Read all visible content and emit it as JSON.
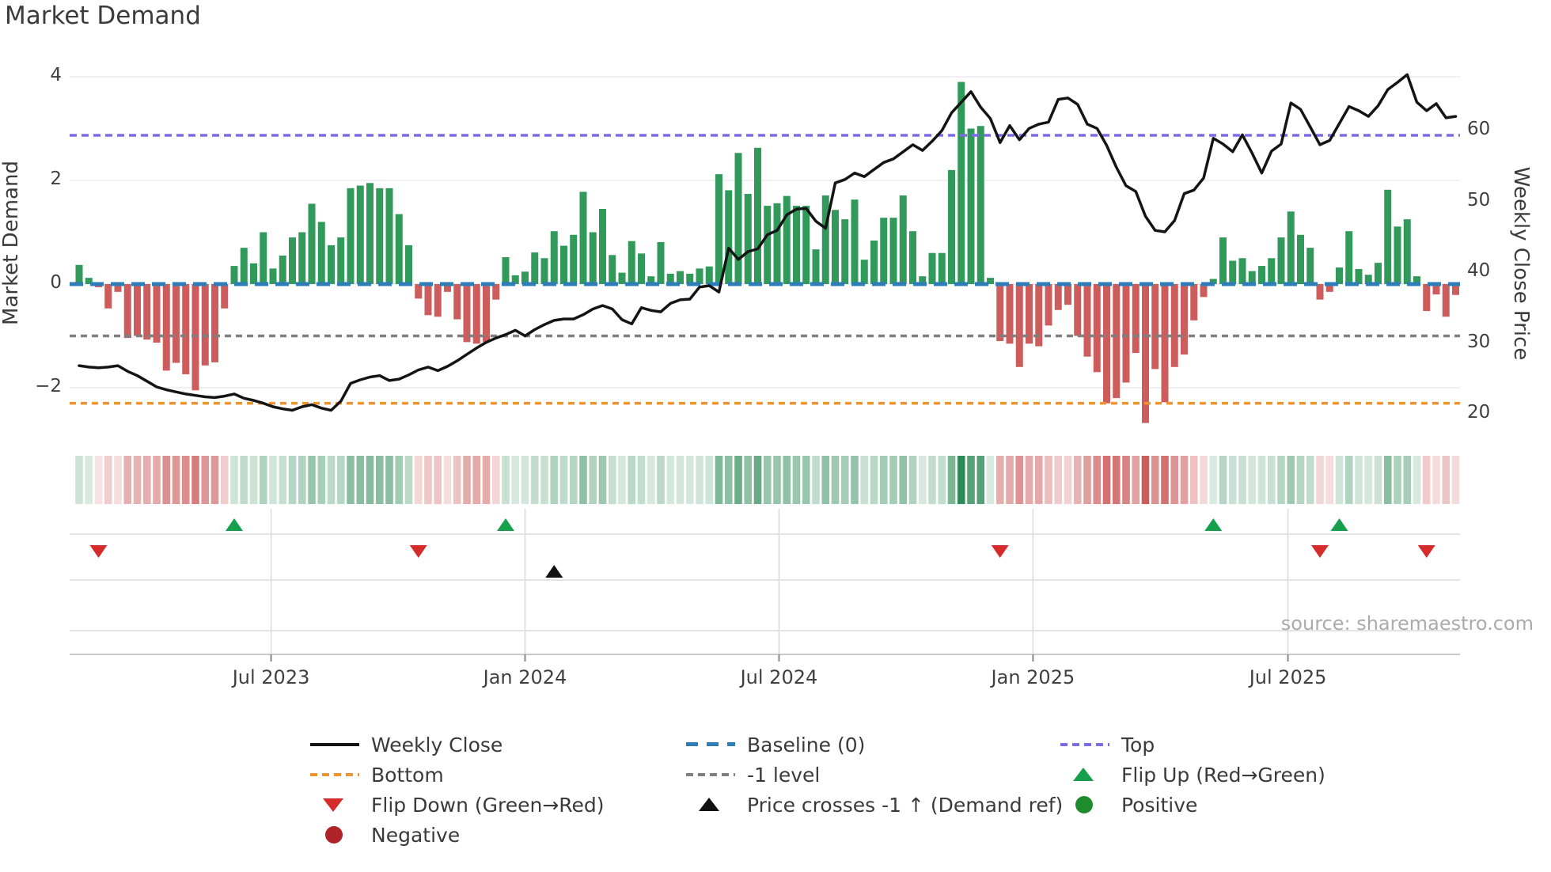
{
  "title": "Market Demand",
  "source": "source: sharemaestro.com",
  "axes": {
    "left_label": "Market Demand",
    "right_label": "Weekly Close Price",
    "left_ticks": [
      {
        "label": "4",
        "value": 4
      },
      {
        "label": "2",
        "value": 2
      },
      {
        "label": "0",
        "value": 0
      },
      {
        "label": "−2",
        "value": -2
      }
    ],
    "right_ticks": [
      {
        "label": "60",
        "value": 60
      },
      {
        "label": "50",
        "value": 50
      },
      {
        "label": "40",
        "value": 40
      },
      {
        "label": "30",
        "value": 30
      },
      {
        "label": "20",
        "value": 20
      }
    ],
    "x_ticks": [
      {
        "label": "Jul 2023",
        "week": 19.8
      },
      {
        "label": "Jan 2024",
        "week": 46.0
      },
      {
        "label": "Jul 2024",
        "week": 72.2
      },
      {
        "label": "Jan 2025",
        "week": 98.4
      },
      {
        "label": "Jul 2025",
        "week": 124.7
      }
    ]
  },
  "ref_lines": {
    "baseline": {
      "label": "Baseline (0)",
      "value": 0,
      "color": "#2e7cb8"
    },
    "top": {
      "label": "Top",
      "value": 2.87,
      "color": "#7b6ce8"
    },
    "bottom": {
      "label": "Bottom",
      "value": -2.3,
      "color": "#f0932e"
    },
    "minus1": {
      "label": "-1 level",
      "value": -1,
      "color": "#7f7f7f"
    }
  },
  "colors": {
    "bar_positive": "#31995a",
    "bar_negative": "#cd5c5c",
    "close_line": "#141414",
    "flip_up": "#16a04c",
    "flip_down": "#d62b2b",
    "cross": "#111111",
    "positive_dot": "#1e8b2c",
    "negative_dot": "#b02328",
    "heat_green": "#2e8b57",
    "heat_red": "#cd5c5c",
    "grid": "#eaeaf2",
    "marker_grid": "#dcdcdc",
    "axis": "#c9c9c9",
    "tick_mark": "#888888"
  },
  "chart_data": {
    "type": "bar",
    "subtype": "bar+line combo with heatmap strip and event-marker rows",
    "title": "Market Demand",
    "xlabel": "",
    "ylabel_left": "Market Demand",
    "ylabel_right": "Weekly Close Price",
    "x_unit": "weeks (weekly bars, ~Feb 2023 to ~Nov 2025)",
    "ylim_demand": [
      -2.7,
      4.35
    ],
    "ylim_price": [
      18.5,
      70
    ],
    "grid": "horizontal only in main panel",
    "legend_position": "bottom, 3 columns",
    "demand": [
      0.37,
      0.12,
      -0.06,
      -0.47,
      -0.15,
      -1.04,
      -1.0,
      -1.07,
      -1.13,
      -1.67,
      -1.52,
      -1.74,
      -2.05,
      -1.57,
      -1.51,
      -0.47,
      0.35,
      0.7,
      0.4,
      1.0,
      0.3,
      0.55,
      0.9,
      1.0,
      1.55,
      1.2,
      0.75,
      0.9,
      1.85,
      1.9,
      1.95,
      1.85,
      1.85,
      1.35,
      0.75,
      -0.28,
      -0.6,
      -0.63,
      -0.15,
      -0.68,
      -1.12,
      -1.15,
      -1.12,
      -0.3,
      0.52,
      0.17,
      0.24,
      0.61,
      0.5,
      1.02,
      0.74,
      0.95,
      1.78,
      1.0,
      1.45,
      0.56,
      0.22,
      0.83,
      0.59,
      0.15,
      0.81,
      0.2,
      0.25,
      0.2,
      0.3,
      0.34,
      2.12,
      1.81,
      2.53,
      1.74,
      2.63,
      1.51,
      1.56,
      1.7,
      1.51,
      1.51,
      0.67,
      1.71,
      1.43,
      1.25,
      1.63,
      0.47,
      0.84,
      1.28,
      1.28,
      1.71,
      1.02,
      0.15,
      0.6,
      0.6,
      2.2,
      3.9,
      3.0,
      3.05,
      0.12,
      -1.1,
      -1.15,
      -1.6,
      -1.15,
      -1.2,
      -0.8,
      -0.5,
      -0.4,
      -1.0,
      -1.4,
      -1.7,
      -2.3,
      -2.2,
      -1.9,
      -1.33,
      -2.68,
      -1.64,
      -2.28,
      -1.6,
      -1.36,
      -0.7,
      -0.25,
      0.1,
      0.9,
      0.45,
      0.5,
      0.25,
      0.35,
      0.5,
      0.9,
      1.4,
      0.95,
      0.7,
      -0.3,
      -0.15,
      0.32,
      1.02,
      0.29,
      0.18,
      0.41,
      1.82,
      1.11,
      1.25,
      0.15,
      -0.52,
      -0.2,
      -0.63,
      -0.21
    ],
    "weekly_close": [
      26.8,
      26.6,
      26.5,
      26.6,
      26.8,
      26.0,
      25.4,
      24.6,
      23.8,
      23.4,
      23.1,
      22.8,
      22.6,
      22.4,
      22.3,
      22.5,
      22.8,
      22.2,
      21.9,
      21.5,
      21.0,
      20.7,
      20.5,
      21.0,
      21.3,
      20.8,
      20.5,
      21.8,
      24.3,
      24.8,
      25.2,
      25.4,
      24.7,
      24.9,
      25.5,
      26.2,
      26.6,
      26.1,
      26.7,
      27.5,
      28.4,
      29.3,
      30.1,
      30.7,
      31.2,
      31.8,
      31.0,
      31.9,
      32.6,
      33.2,
      33.4,
      33.4,
      34.0,
      34.8,
      35.3,
      34.8,
      33.3,
      32.7,
      35.0,
      34.6,
      34.4,
      35.6,
      36.1,
      36.2,
      37.9,
      38.1,
      37.2,
      43.4,
      41.8,
      42.9,
      43.3,
      45.3,
      45.9,
      48.1,
      48.9,
      49.0,
      47.2,
      46.2,
      52.6,
      53.1,
      54.0,
      53.5,
      54.5,
      55.5,
      56.0,
      57.0,
      58.0,
      57.2,
      58.5,
      60.0,
      62.5,
      64.0,
      65.5,
      63.3,
      61.7,
      58.3,
      60.7,
      58.7,
      60.3,
      60.9,
      61.2,
      64.4,
      64.6,
      63.7,
      60.9,
      60.3,
      57.9,
      54.8,
      52.2,
      51.4,
      47.9,
      45.9,
      45.7,
      47.3,
      51.1,
      51.6,
      53.3,
      58.9,
      58.1,
      57.0,
      59.4,
      56.8,
      54.0,
      57.1,
      58.1,
      63.9,
      63.0,
      60.5,
      58.0,
      58.6,
      61.0,
      63.4,
      62.8,
      62.0,
      63.5,
      65.8,
      66.8,
      67.9,
      64.0,
      62.8,
      63.8,
      61.8,
      62.0
    ],
    "heatmap_strip": "diverging red/green cells, one per week; hue = sign of demand, intensity = |demand|",
    "markers": {
      "flip_down_weeks": [
        2,
        35,
        95,
        128,
        139
      ],
      "flip_up_weeks": [
        16,
        44,
        117,
        130
      ],
      "price_cross_weeks": [
        49
      ]
    }
  },
  "legend": {
    "columns": [
      {
        "items": [
          {
            "label": "Weekly Close",
            "swatch": "line-black",
            "name": "legend-weekly-close"
          },
          {
            "label": "Bottom",
            "swatch": "dash-orange",
            "name": "legend-bottom"
          },
          {
            "label": "Flip Down (Green→Red)",
            "swatch": "tri-down-red",
            "name": "legend-flip-down"
          },
          {
            "label": "Negative",
            "swatch": "dot-darkred",
            "name": "legend-negative"
          }
        ]
      },
      {
        "items": [
          {
            "label": "Baseline (0)",
            "swatch": "dash-blue",
            "name": "legend-baseline"
          },
          {
            "label": "-1 level",
            "swatch": "dash-gray",
            "name": "legend-minus1"
          },
          {
            "label": "Price crosses -1 ↑ (Demand ref)",
            "swatch": "tri-up-black",
            "name": "legend-price-cross"
          }
        ]
      },
      {
        "items": [
          {
            "label": "Top",
            "swatch": "dash-purple",
            "name": "legend-top"
          },
          {
            "label": "Flip Up (Red→Green)",
            "swatch": "tri-up-green",
            "name": "legend-flip-up"
          },
          {
            "label": "Positive",
            "swatch": "dot-green",
            "name": "legend-positive"
          }
        ]
      }
    ]
  }
}
